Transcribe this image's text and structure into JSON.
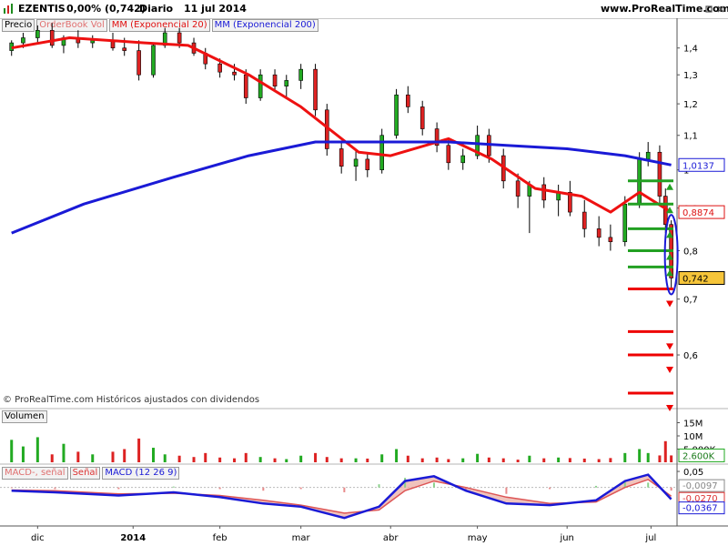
{
  "header": {
    "ticker": "EZENTIS",
    "change": "0,00% (0,742)",
    "period": "Diario",
    "date": "11 jul 2014",
    "site": "www.ProRealTime.com"
  },
  "legend": {
    "price": "Precio",
    "orderbook": "OrderBook Vol",
    "ema20": "MM (Exponencial 20)",
    "ema200": "MM (Exponencial 200)"
  },
  "footnote": "© ProRealTime.com  Históricos ajustados con dividendos",
  "volume_panel": {
    "label": "Volumen"
  },
  "macd_panel": {
    "label_a": "MACD-, señal",
    "label_b": "Señal",
    "label_c": "MACD (12 26 9)"
  },
  "colors": {
    "up": "#22aa22",
    "down": "#dd2222",
    "ema20": "#ee1111",
    "ema200": "#1a1ad6",
    "green_level": "#22a022",
    "red_level": "#ee0000",
    "current_price_box": "#f6c53a"
  },
  "chart_data": [
    {
      "type": "candlestick",
      "title": "",
      "x_ticks": [
        "dic",
        "2014",
        "feb",
        "mar",
        "abr",
        "may",
        "jun",
        "jul"
      ],
      "y_ticks": [
        "0,6",
        "0,7",
        "0,8",
        "0,9",
        "1",
        "1,1",
        "1,2",
        "1,3",
        "1,4"
      ],
      "ylim": [
        0.52,
        1.52
      ],
      "y_scale": "log",
      "grid": false,
      "series": [
        {
          "name": "MM (Exponencial 20)",
          "color": "#ee1111",
          "x": [
            "2013-11-25",
            "2013-12-15",
            "2014-01-10",
            "2014-01-25",
            "2014-02-15",
            "2014-03-05",
            "2014-03-25",
            "2014-04-05",
            "2014-04-25",
            "2014-05-10",
            "2014-05-25",
            "2014-06-10",
            "2014-06-20",
            "2014-06-30",
            "2014-07-11"
          ],
          "values": [
            1.4,
            1.44,
            1.42,
            1.41,
            1.3,
            1.19,
            1.05,
            1.04,
            1.09,
            1.03,
            0.95,
            0.93,
            0.89,
            0.94,
            0.89
          ]
        },
        {
          "name": "MM (Exponencial 200)",
          "color": "#1a1ad6",
          "x": [
            "2013-11-25",
            "2013-12-20",
            "2014-01-20",
            "2014-02-15",
            "2014-03-10",
            "2014-04-05",
            "2014-04-25",
            "2014-05-15",
            "2014-06-05",
            "2014-06-25",
            "2014-07-11"
          ],
          "values": [
            0.84,
            0.91,
            0.98,
            1.04,
            1.08,
            1.08,
            1.08,
            1.07,
            1.06,
            1.04,
            1.0137
          ]
        }
      ],
      "price_labels": [
        "1,0137",
        "0,8874",
        "0,742"
      ],
      "levels": {
        "green": [
          0.97,
          0.91,
          0.85,
          0.8,
          0.765
        ],
        "red": [
          0.72,
          0.64,
          0.6,
          0.54
        ]
      },
      "candles": [
        {
          "date": "2013-11-25",
          "open": 1.39,
          "high": 1.43,
          "low": 1.37,
          "close": 1.42
        },
        {
          "date": "2013-11-29",
          "open": 1.42,
          "high": 1.46,
          "low": 1.4,
          "close": 1.44
        },
        {
          "date": "2013-12-04",
          "open": 1.44,
          "high": 1.49,
          "low": 1.42,
          "close": 1.47
        },
        {
          "date": "2013-12-09",
          "open": 1.47,
          "high": 1.5,
          "low": 1.4,
          "close": 1.41
        },
        {
          "date": "2013-12-13",
          "open": 1.41,
          "high": 1.45,
          "low": 1.38,
          "close": 1.44
        },
        {
          "date": "2013-12-18",
          "open": 1.44,
          "high": 1.47,
          "low": 1.4,
          "close": 1.42
        },
        {
          "date": "2013-12-23",
          "open": 1.42,
          "high": 1.45,
          "low": 1.4,
          "close": 1.43
        },
        {
          "date": "2013-12-30",
          "open": 1.43,
          "high": 1.46,
          "low": 1.39,
          "close": 1.4
        },
        {
          "date": "2014-01-03",
          "open": 1.4,
          "high": 1.44,
          "low": 1.37,
          "close": 1.39
        },
        {
          "date": "2014-01-08",
          "open": 1.39,
          "high": 1.43,
          "low": 1.28,
          "close": 1.3
        },
        {
          "date": "2014-01-13",
          "open": 1.3,
          "high": 1.42,
          "low": 1.29,
          "close": 1.41
        },
        {
          "date": "2014-01-17",
          "open": 1.41,
          "high": 1.48,
          "low": 1.4,
          "close": 1.46
        },
        {
          "date": "2014-01-22",
          "open": 1.46,
          "high": 1.48,
          "low": 1.4,
          "close": 1.42
        },
        {
          "date": "2014-01-27",
          "open": 1.42,
          "high": 1.44,
          "low": 1.37,
          "close": 1.38
        },
        {
          "date": "2014-01-31",
          "open": 1.38,
          "high": 1.4,
          "low": 1.32,
          "close": 1.34
        },
        {
          "date": "2014-02-05",
          "open": 1.34,
          "high": 1.36,
          "low": 1.29,
          "close": 1.31
        },
        {
          "date": "2014-02-10",
          "open": 1.31,
          "high": 1.34,
          "low": 1.28,
          "close": 1.3
        },
        {
          "date": "2014-02-14",
          "open": 1.3,
          "high": 1.32,
          "low": 1.2,
          "close": 1.22
        },
        {
          "date": "2014-02-19",
          "open": 1.22,
          "high": 1.32,
          "low": 1.21,
          "close": 1.3
        },
        {
          "date": "2014-02-24",
          "open": 1.3,
          "high": 1.32,
          "low": 1.24,
          "close": 1.26
        },
        {
          "date": "2014-02-28",
          "open": 1.26,
          "high": 1.3,
          "low": 1.22,
          "close": 1.28
        },
        {
          "date": "2014-03-05",
          "open": 1.28,
          "high": 1.34,
          "low": 1.25,
          "close": 1.32
        },
        {
          "date": "2014-03-10",
          "open": 1.32,
          "high": 1.34,
          "low": 1.16,
          "close": 1.18
        },
        {
          "date": "2014-03-14",
          "open": 1.18,
          "high": 1.2,
          "low": 1.04,
          "close": 1.06
        },
        {
          "date": "2014-03-19",
          "open": 1.06,
          "high": 1.08,
          "low": 0.99,
          "close": 1.01
        },
        {
          "date": "2014-03-24",
          "open": 1.01,
          "high": 1.06,
          "low": 0.97,
          "close": 1.03
        },
        {
          "date": "2014-03-28",
          "open": 1.03,
          "high": 1.05,
          "low": 0.98,
          "close": 1.0
        },
        {
          "date": "2014-04-02",
          "open": 1.0,
          "high": 1.12,
          "low": 0.99,
          "close": 1.1
        },
        {
          "date": "2014-04-07",
          "open": 1.1,
          "high": 1.25,
          "low": 1.09,
          "close": 1.23
        },
        {
          "date": "2014-04-11",
          "open": 1.23,
          "high": 1.26,
          "low": 1.17,
          "close": 1.19
        },
        {
          "date": "2014-04-16",
          "open": 1.19,
          "high": 1.21,
          "low": 1.1,
          "close": 1.12
        },
        {
          "date": "2014-04-21",
          "open": 1.12,
          "high": 1.14,
          "low": 1.05,
          "close": 1.07
        },
        {
          "date": "2014-04-25",
          "open": 1.07,
          "high": 1.09,
          "low": 1.0,
          "close": 1.02
        },
        {
          "date": "2014-04-30",
          "open": 1.02,
          "high": 1.06,
          "low": 1.0,
          "close": 1.04
        },
        {
          "date": "2014-05-05",
          "open": 1.04,
          "high": 1.13,
          "low": 1.03,
          "close": 1.1
        },
        {
          "date": "2014-05-09",
          "open": 1.1,
          "high": 1.12,
          "low": 1.02,
          "close": 1.04
        },
        {
          "date": "2014-05-14",
          "open": 1.04,
          "high": 1.06,
          "low": 0.95,
          "close": 0.97
        },
        {
          "date": "2014-05-19",
          "open": 0.97,
          "high": 0.99,
          "low": 0.9,
          "close": 0.93
        },
        {
          "date": "2014-05-23",
          "open": 0.93,
          "high": 0.97,
          "low": 0.84,
          "close": 0.96
        },
        {
          "date": "2014-05-28",
          "open": 0.96,
          "high": 0.98,
          "low": 0.9,
          "close": 0.92
        },
        {
          "date": "2014-06-02",
          "open": 0.92,
          "high": 0.96,
          "low": 0.88,
          "close": 0.94
        },
        {
          "date": "2014-06-06",
          "open": 0.94,
          "high": 0.97,
          "low": 0.88,
          "close": 0.89
        },
        {
          "date": "2014-06-11",
          "open": 0.89,
          "high": 0.92,
          "low": 0.83,
          "close": 0.85
        },
        {
          "date": "2014-06-16",
          "open": 0.85,
          "high": 0.88,
          "low": 0.81,
          "close": 0.83
        },
        {
          "date": "2014-06-20",
          "open": 0.83,
          "high": 0.86,
          "low": 0.8,
          "close": 0.82
        },
        {
          "date": "2014-06-25",
          "open": 0.82,
          "high": 0.93,
          "low": 0.81,
          "close": 0.91
        },
        {
          "date": "2014-06-30",
          "open": 0.91,
          "high": 1.05,
          "low": 0.9,
          "close": 1.03
        },
        {
          "date": "2014-07-03",
          "open": 1.03,
          "high": 1.08,
          "low": 1.01,
          "close": 1.05
        },
        {
          "date": "2014-07-07",
          "open": 1.05,
          "high": 1.07,
          "low": 0.91,
          "close": 0.93
        },
        {
          "date": "2014-07-09",
          "open": 0.93,
          "high": 0.95,
          "low": 0.84,
          "close": 0.86
        },
        {
          "date": "2014-07-11",
          "open": 0.86,
          "high": 0.87,
          "low": 0.72,
          "close": 0.742
        }
      ]
    },
    {
      "type": "bar",
      "title": "",
      "y_ticks": [
        "15M",
        "10M",
        "5.000K"
      ],
      "ylim": [
        0,
        20
      ],
      "price_labels": [
        "2.600K"
      ],
      "x": [
        "2013-11-25",
        "2013-11-29",
        "2013-12-04",
        "2013-12-09",
        "2013-12-13",
        "2013-12-18",
        "2013-12-23",
        "2013-12-30",
        "2014-01-03",
        "2014-01-08",
        "2014-01-13",
        "2014-01-17",
        "2014-01-22",
        "2014-01-27",
        "2014-01-31",
        "2014-02-05",
        "2014-02-10",
        "2014-02-14",
        "2014-02-19",
        "2014-02-24",
        "2014-02-28",
        "2014-03-05",
        "2014-03-10",
        "2014-03-14",
        "2014-03-19",
        "2014-03-24",
        "2014-03-28",
        "2014-04-02",
        "2014-04-07",
        "2014-04-11",
        "2014-04-16",
        "2014-04-21",
        "2014-04-25",
        "2014-04-30",
        "2014-05-05",
        "2014-05-09",
        "2014-05-14",
        "2014-05-19",
        "2014-05-23",
        "2014-05-28",
        "2014-06-02",
        "2014-06-06",
        "2014-06-11",
        "2014-06-16",
        "2014-06-20",
        "2014-06-25",
        "2014-06-30",
        "2014-07-03",
        "2014-07-07",
        "2014-07-09",
        "2014-07-11"
      ],
      "values": [
        8.5,
        6.0,
        9.5,
        3.0,
        7.0,
        4.0,
        3.0,
        4.0,
        5.0,
        9.0,
        5.5,
        3.0,
        2.5,
        2.0,
        3.5,
        1.8,
        1.5,
        3.5,
        2.0,
        1.5,
        1.2,
        2.5,
        3.5,
        2.0,
        1.5,
        1.5,
        1.4,
        3.0,
        5.0,
        2.5,
        1.5,
        1.8,
        1.2,
        1.5,
        3.2,
        1.8,
        1.5,
        1.0,
        2.5,
        1.5,
        1.8,
        1.6,
        1.4,
        1.2,
        1.6,
        3.5,
        5.0,
        3.5,
        2.6,
        8.0,
        2.6
      ],
      "direction": [
        "up",
        "up",
        "up",
        "down",
        "up",
        "down",
        "up",
        "down",
        "down",
        "down",
        "up",
        "up",
        "down",
        "down",
        "down",
        "down",
        "down",
        "down",
        "up",
        "down",
        "up",
        "up",
        "down",
        "down",
        "down",
        "up",
        "down",
        "up",
        "up",
        "down",
        "down",
        "down",
        "down",
        "up",
        "up",
        "down",
        "down",
        "down",
        "up",
        "down",
        "up",
        "down",
        "down",
        "down",
        "down",
        "up",
        "up",
        "up",
        "down",
        "down",
        "down"
      ]
    },
    {
      "type": "area",
      "title": "",
      "y_ticks": [
        "0,05"
      ],
      "ylim": [
        -0.12,
        0.07
      ],
      "price_labels": [
        "-0,0097",
        "-0,0270",
        "-0,0367"
      ],
      "x": [
        "2013-11-25",
        "2013-12-10",
        "2014-01-01",
        "2014-01-20",
        "2014-02-05",
        "2014-02-20",
        "2014-03-05",
        "2014-03-20",
        "2014-04-01",
        "2014-04-10",
        "2014-04-20",
        "2014-05-01",
        "2014-05-15",
        "2014-05-30",
        "2014-06-15",
        "2014-06-25",
        "2014-07-03",
        "2014-07-11"
      ],
      "series": [
        {
          "name": "MACD",
          "color": "#1a1ad6",
          "values": [
            -0.01,
            -0.015,
            -0.025,
            -0.015,
            -0.03,
            -0.05,
            -0.06,
            -0.095,
            -0.06,
            0.02,
            0.035,
            -0.01,
            -0.05,
            -0.055,
            -0.04,
            0.02,
            0.04,
            -0.0367
          ]
        },
        {
          "name": "Señal",
          "color": "#dd5555",
          "values": [
            -0.008,
            -0.01,
            -0.02,
            -0.018,
            -0.025,
            -0.04,
            -0.055,
            -0.08,
            -0.07,
            -0.01,
            0.02,
            0.0,
            -0.03,
            -0.05,
            -0.045,
            0.0,
            0.025,
            -0.027
          ]
        },
        {
          "name": "MACD-, señal",
          "color": "#888888",
          "values": [
            -0.002,
            -0.005,
            -0.005,
            0.003,
            -0.005,
            -0.01,
            -0.005,
            -0.015,
            0.01,
            0.03,
            0.015,
            -0.01,
            -0.02,
            -0.005,
            0.005,
            0.02,
            0.015,
            -0.0097
          ]
        }
      ]
    }
  ]
}
